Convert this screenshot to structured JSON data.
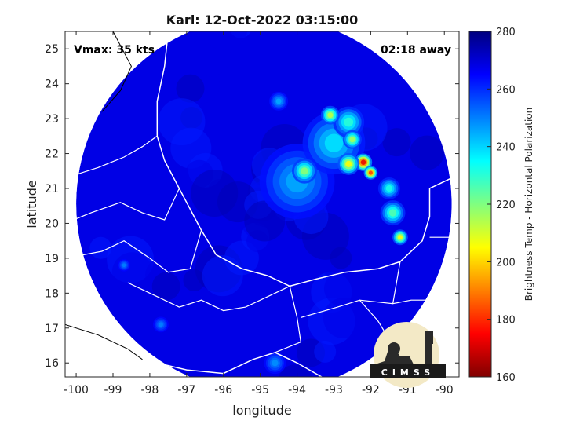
{
  "chart_data": {
    "type": "heatmap",
    "title": "Karl: 12-Oct-2022 03:15:00",
    "xlabel": "longitude",
    "ylabel": "latitude",
    "xlim": [
      -100.3,
      -89.6
    ],
    "ylim": [
      15.6,
      25.5
    ],
    "xticks": [
      -100,
      -99,
      -98,
      -97,
      -96,
      -95,
      -94,
      -93,
      -92,
      -91,
      -90
    ],
    "yticks": [
      16,
      17,
      18,
      19,
      20,
      21,
      22,
      23,
      24,
      25
    ],
    "annotations": {
      "vmax": "Vmax: 35 kts",
      "away": "02:18 away"
    },
    "colorbar": {
      "label": "Brightness Temp - Horizontal Polarization",
      "min": 160,
      "max": 280,
      "ticks": [
        160,
        180,
        200,
        220,
        240,
        260,
        280
      ]
    },
    "swath": {
      "center_lon": -94.9,
      "center_lat": 20.55,
      "radius_deg": 5.1
    },
    "background_tb": 268,
    "features": [
      {
        "lon": -94.0,
        "lat": 21.2,
        "tb": 245,
        "r": 1.2
      },
      {
        "lon": -93.0,
        "lat": 22.3,
        "tb": 238,
        "r": 1.0
      },
      {
        "lon": -92.6,
        "lat": 22.9,
        "tb": 230,
        "r": 0.5
      },
      {
        "lon": -93.1,
        "lat": 23.1,
        "tb": 212,
        "r": 0.3
      },
      {
        "lon": -92.2,
        "lat": 21.75,
        "tb": 172,
        "r": 0.28
      },
      {
        "lon": -92.0,
        "lat": 21.45,
        "tb": 182,
        "r": 0.22
      },
      {
        "lon": -92.6,
        "lat": 21.7,
        "tb": 205,
        "r": 0.35
      },
      {
        "lon": -92.5,
        "lat": 22.4,
        "tb": 215,
        "r": 0.3
      },
      {
        "lon": -93.8,
        "lat": 21.5,
        "tb": 218,
        "r": 0.4
      },
      {
        "lon": -91.4,
        "lat": 20.3,
        "tb": 225,
        "r": 0.4
      },
      {
        "lon": -91.2,
        "lat": 19.6,
        "tb": 205,
        "r": 0.25
      },
      {
        "lon": -91.5,
        "lat": 21.0,
        "tb": 232,
        "r": 0.35
      },
      {
        "lon": -94.5,
        "lat": 23.5,
        "tb": 245,
        "r": 0.3
      },
      {
        "lon": -94.6,
        "lat": 16.0,
        "tb": 248,
        "r": 0.35
      },
      {
        "lon": -98.7,
        "lat": 18.8,
        "tb": 250,
        "r": 0.2
      },
      {
        "lon": -97.7,
        "lat": 17.1,
        "tb": 250,
        "r": 0.25
      }
    ]
  },
  "logo": {
    "text": "CIMSS"
  }
}
